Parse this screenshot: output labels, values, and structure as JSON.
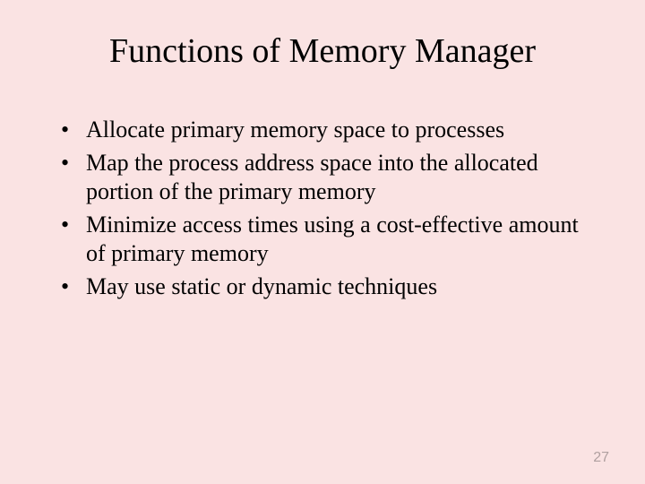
{
  "slide": {
    "title": "Functions of Memory Manager",
    "bullets": [
      "Allocate primary memory space to processes",
      "Map the process address space into the allocated portion of the primary memory",
      "Minimize access times using a cost-effective amount of primary memory",
      "May use static or dynamic techniques"
    ],
    "page_number": "27",
    "background_color": "#fae3e3",
    "text_color": "#000000",
    "page_number_color": "#b0a0a0",
    "title_fontsize": 38,
    "body_fontsize": 26,
    "page_number_fontsize": 16
  }
}
